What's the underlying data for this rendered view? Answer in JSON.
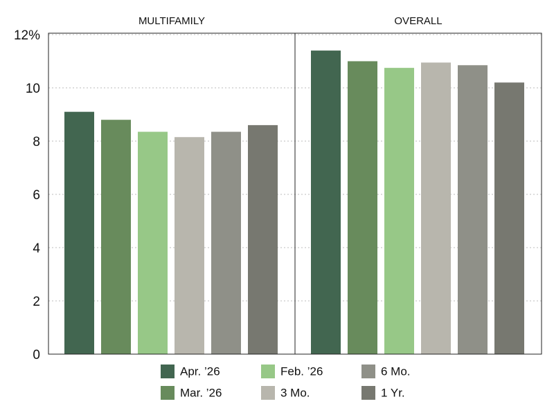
{
  "chart_data": {
    "type": "bar",
    "categories": [
      "MULTIFAMILY",
      "OVERALL"
    ],
    "series": [
      {
        "name": "Apr. ’26",
        "color": "#426650",
        "values": [
          9.1,
          11.4
        ]
      },
      {
        "name": "Mar. ’26",
        "color": "#688b5c",
        "values": [
          8.8,
          11.0
        ]
      },
      {
        "name": "Feb. ’26",
        "color": "#97c887",
        "values": [
          8.35,
          10.75
        ]
      },
      {
        "name": "3 Mo.",
        "color": "#b8b6ad",
        "values": [
          8.15,
          10.95
        ]
      },
      {
        "name": "6 Mo.",
        "color": "#8f9088",
        "values": [
          8.35,
          10.85
        ]
      },
      {
        "name": "1 Yr.",
        "color": "#777870",
        "values": [
          8.6,
          10.2
        ]
      }
    ],
    "ylim": [
      0,
      12
    ],
    "yticks": [
      0,
      2,
      4,
      6,
      8,
      10,
      {
        "value": 12,
        "label": "12%"
      }
    ],
    "grid": true
  }
}
